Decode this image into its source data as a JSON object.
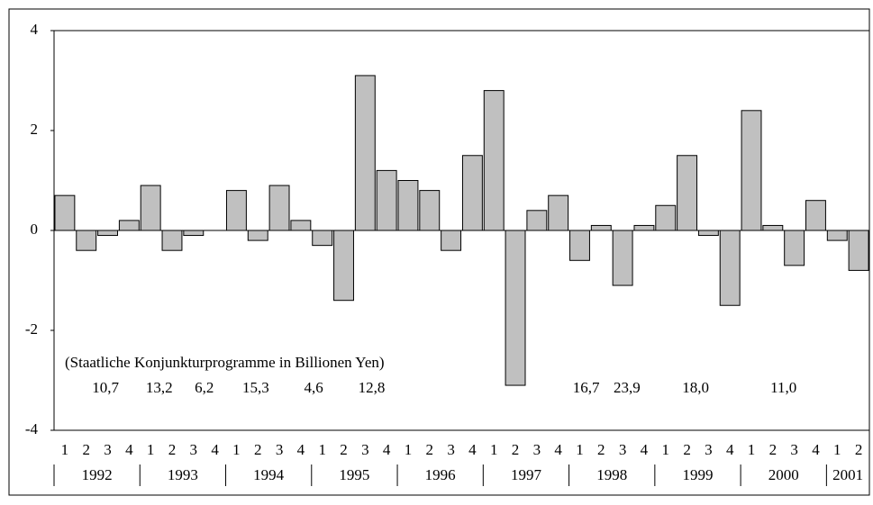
{
  "chart_data": {
    "type": "bar",
    "categories": [
      "1",
      "2",
      "3",
      "4",
      "1",
      "2",
      "3",
      "4",
      "1",
      "2",
      "3",
      "4",
      "1",
      "2",
      "3",
      "4",
      "1",
      "2",
      "3",
      "4",
      "1",
      "2",
      "3",
      "4",
      "1",
      "2",
      "3",
      "4",
      "1",
      "2",
      "3",
      "4",
      "1",
      "2",
      "3",
      "4",
      "1",
      "2"
    ],
    "year_groups": [
      "1992",
      "1993",
      "1994",
      "1995",
      "1996",
      "1997",
      "1998",
      "1999",
      "2000",
      "2001"
    ],
    "values": [
      0.7,
      -0.4,
      -0.1,
      0.2,
      0.9,
      -0.4,
      -0.1,
      0.0,
      0.8,
      -0.2,
      0.9,
      0.2,
      -0.3,
      -1.4,
      3.1,
      1.2,
      1.0,
      0.8,
      -0.4,
      1.5,
      2.8,
      -3.1,
      0.4,
      0.7,
      -0.6,
      0.1,
      -1.1,
      0.1,
      0.5,
      1.5,
      -0.1,
      -1.5,
      2.4,
      0.1,
      -0.7,
      0.6,
      -0.2,
      -0.8
    ],
    "color": "#c0c0c0",
    "ylim": [
      -4,
      4
    ],
    "yticks": [
      -4,
      -2,
      0,
      2,
      4
    ],
    "annotation": "(Staatliche Konjunkturprogramme in Billionen Yen)",
    "programme_labels": [
      "10,7",
      "13,2",
      "6,2",
      "15,3",
      "4,6",
      "12,8",
      "16,7",
      "23,9",
      "18,0",
      "11,0"
    ]
  }
}
